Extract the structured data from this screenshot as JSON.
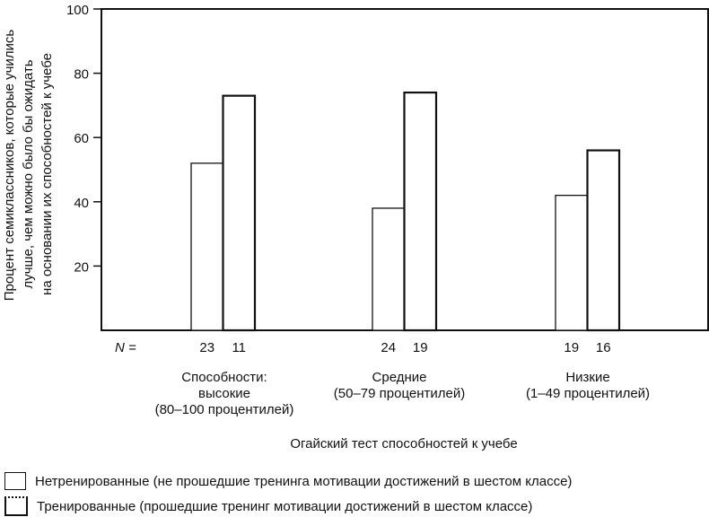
{
  "chart_data": {
    "type": "bar",
    "ylabel": [
      "Процент семиклассников, которые учились",
      "лучше, чем можно было бы ожидать",
      "на основании их способностей к учебе"
    ],
    "xlabel": "Огайский тест способностей к учебе",
    "ylim": [
      0,
      100
    ],
    "yticks": [
      20,
      40,
      60,
      80,
      100
    ],
    "n_label": "N =",
    "categories": [
      {
        "lines": [
          "Способности:",
          "высокие",
          "(80–100 процентилей)"
        ],
        "n": [
          "23",
          "11"
        ]
      },
      {
        "lines": [
          "Средние",
          "(50–79 процентилей)"
        ],
        "n": [
          "24",
          "19"
        ]
      },
      {
        "lines": [
          "Низкие",
          "(1–49 процентилей)"
        ],
        "n": [
          "19",
          "16"
        ]
      }
    ],
    "series": [
      {
        "name": "Нетренированные (не прошедшие тренинга мотивации достижений в шестом классе)",
        "values": [
          52,
          38,
          42
        ]
      },
      {
        "name": "Тренированные (прошедшие тренинг мотивации достижений в шестом классе)",
        "values": [
          73,
          74,
          56
        ]
      }
    ],
    "grid": false,
    "legend": "bottom-left"
  }
}
